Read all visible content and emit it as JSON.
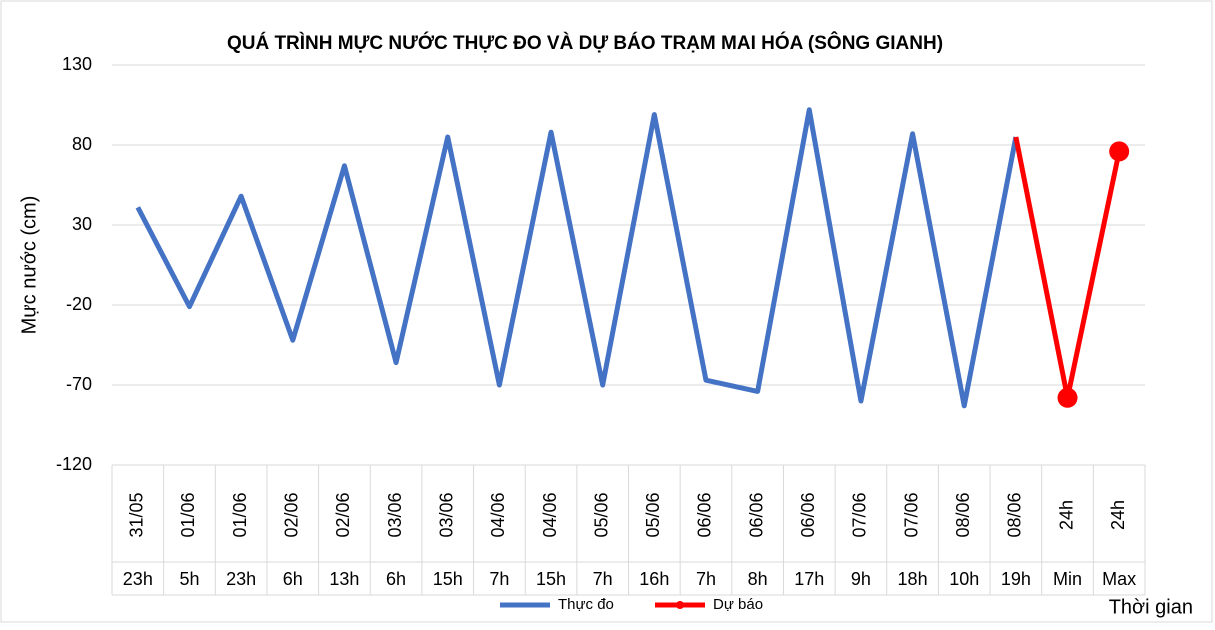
{
  "chart_data": {
    "type": "line",
    "title": "QUÁ TRÌNH MỰC NƯỚC THỰC ĐO VÀ DỰ BÁO TRẠM MAI HÓA (SÔNG GIANH)",
    "y_label": "Mực nước (cm)",
    "x_label": "Thời gian",
    "categories": [
      [
        "31/05",
        "23h"
      ],
      [
        "01/06",
        "5h"
      ],
      [
        "01/06",
        "23h"
      ],
      [
        "02/06",
        "6h"
      ],
      [
        "02/06",
        "13h"
      ],
      [
        "03/06",
        "6h"
      ],
      [
        "03/06",
        "15h"
      ],
      [
        "04/06",
        "7h"
      ],
      [
        "04/06",
        "15h"
      ],
      [
        "05/06",
        "7h"
      ],
      [
        "05/06",
        "16h"
      ],
      [
        "06/06",
        "7h"
      ],
      [
        "06/06",
        "8h"
      ],
      [
        "06/06",
        "17h"
      ],
      [
        "07/06",
        "9h"
      ],
      [
        "07/06",
        "18h"
      ],
      [
        "08/06",
        "10h"
      ],
      [
        "08/06",
        "19h"
      ],
      [
        "24h",
        "Min"
      ],
      [
        "24h",
        "Max"
      ]
    ],
    "series": [
      {
        "name": "Thực đo",
        "color": "#4472c4",
        "values": [
          41,
          -21,
          48,
          -42,
          67,
          -56,
          85,
          -70,
          88,
          -70,
          99,
          -67,
          -74,
          102,
          -80,
          87,
          -83,
          85,
          null,
          null
        ]
      },
      {
        "name": "Dự báo",
        "color": "#ff0000",
        "values": [
          null,
          null,
          null,
          null,
          null,
          null,
          null,
          null,
          null,
          null,
          null,
          null,
          null,
          null,
          null,
          null,
          null,
          85,
          -78,
          76
        ]
      }
    ],
    "ylim": [
      -120,
      130
    ],
    "yticks": [
      -120,
      -70,
      -20,
      30,
      80,
      130
    ],
    "grid": true,
    "legend": "bottom"
  }
}
